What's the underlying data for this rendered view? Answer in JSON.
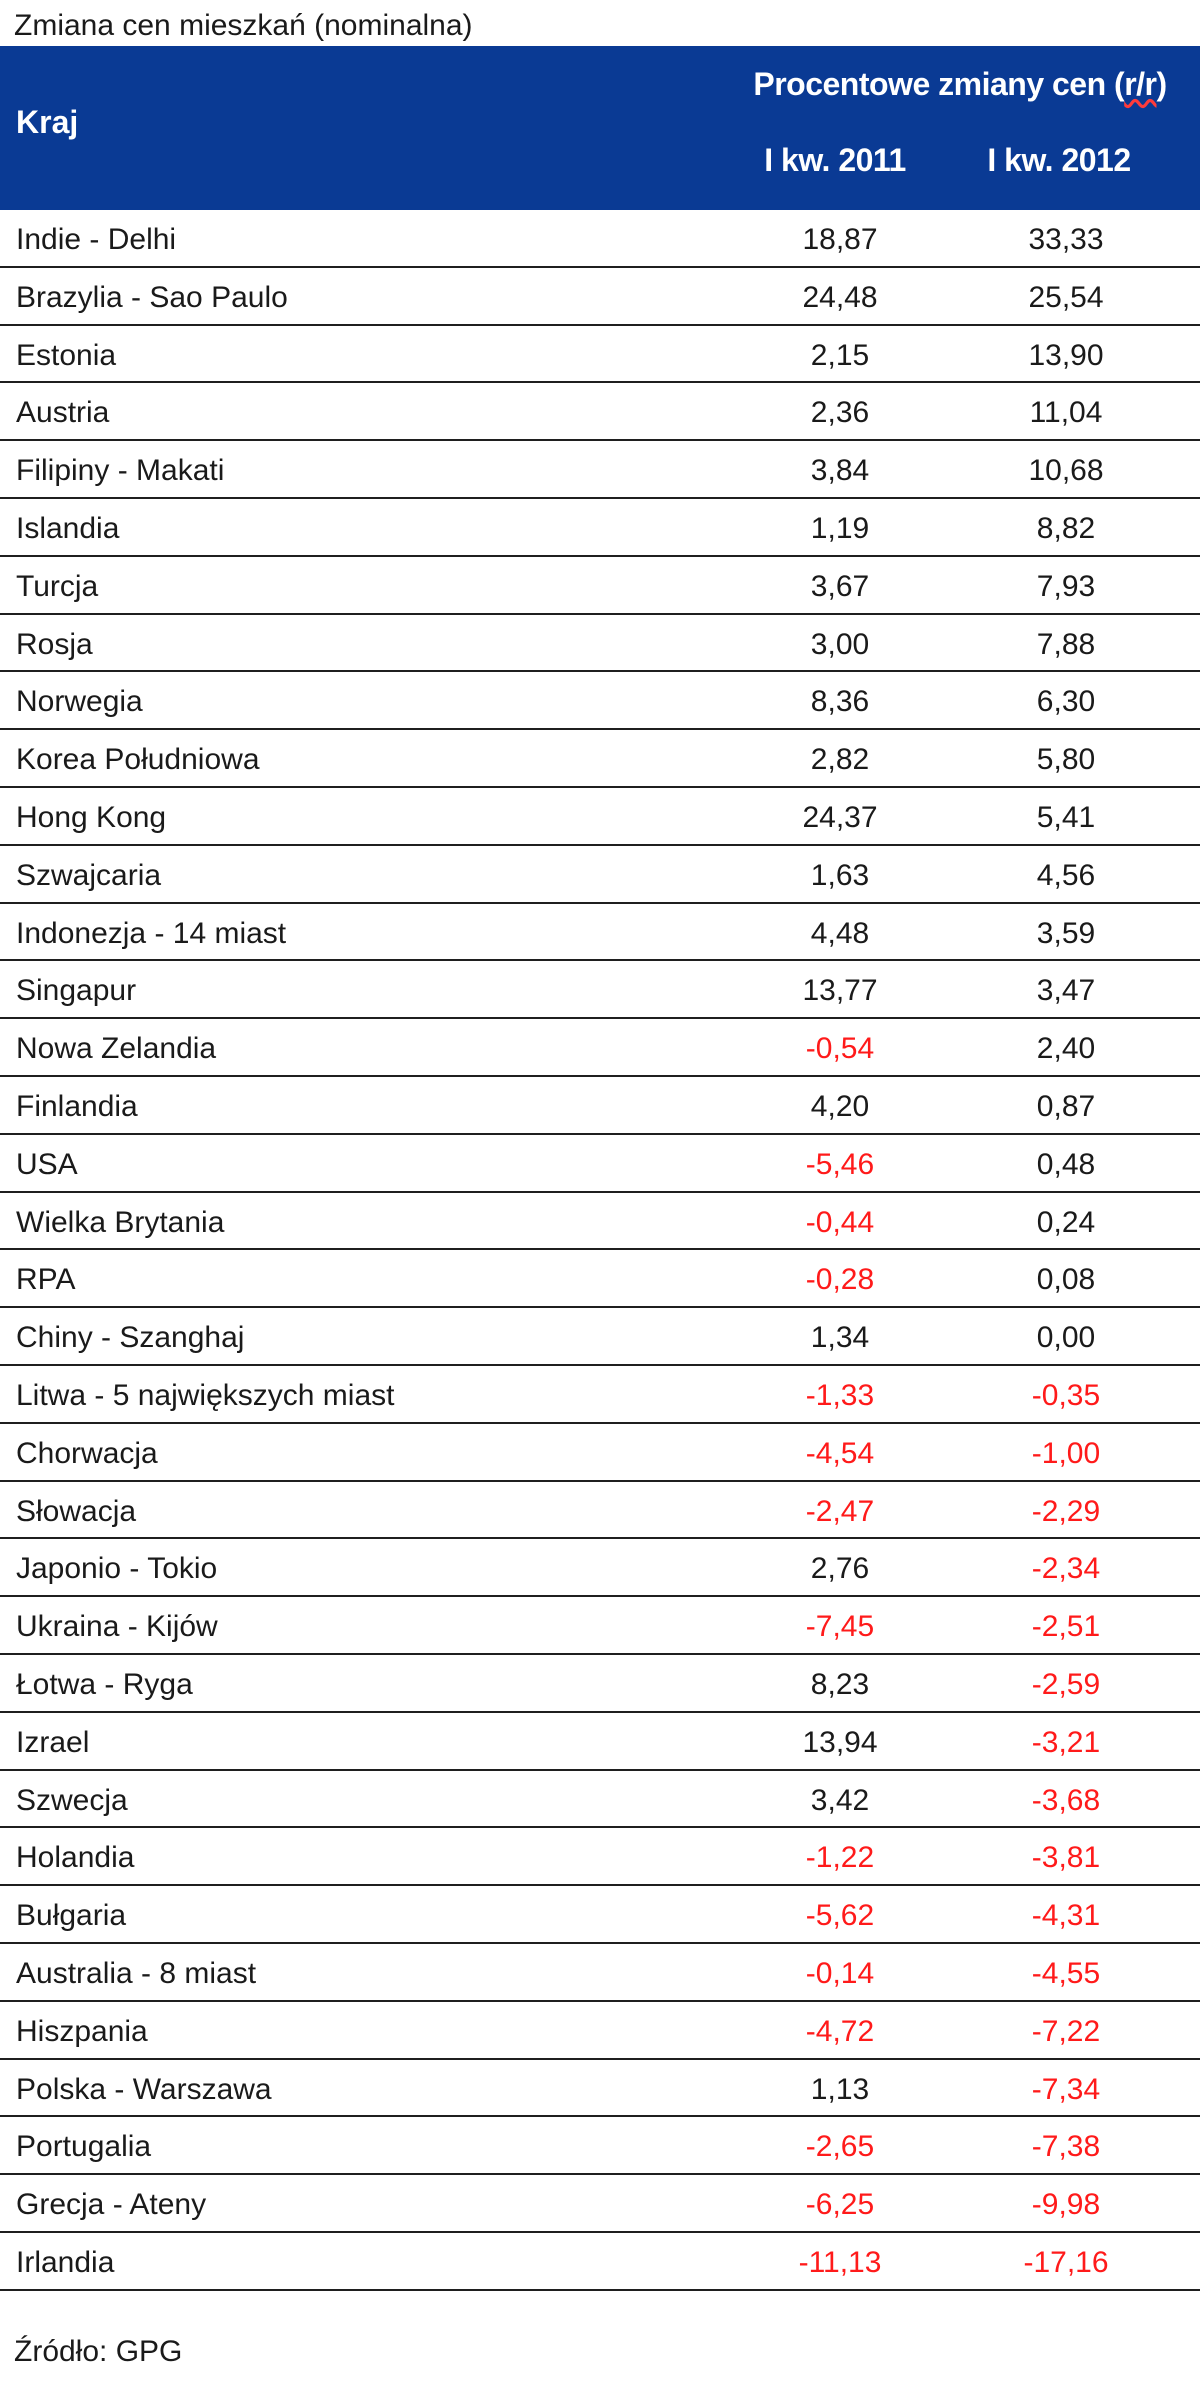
{
  "title": "Zmiana cen mieszkań (nominalna)",
  "table": {
    "header": {
      "country": "Kraj",
      "group_main": "Procentowe zmiany cen (",
      "group_rr": "r/r",
      "group_end": ")",
      "col1": "I kw. 2011",
      "col2": "I kw. 2012"
    },
    "rows": [
      {
        "country": "Indie - Delhi",
        "q1_2011": "18,87",
        "q1_2012": "33,33"
      },
      {
        "country": "Brazylia - Sao Paulo",
        "q1_2011": "24,48",
        "q1_2012": "25,54"
      },
      {
        "country": "Estonia",
        "q1_2011": "2,15",
        "q1_2012": "13,90"
      },
      {
        "country": "Austria",
        "q1_2011": "2,36",
        "q1_2012": "11,04"
      },
      {
        "country": "Filipiny - Makati",
        "q1_2011": "3,84",
        "q1_2012": "10,68"
      },
      {
        "country": "Islandia",
        "q1_2011": "1,19",
        "q1_2012": "8,82"
      },
      {
        "country": "Turcja",
        "q1_2011": "3,67",
        "q1_2012": "7,93"
      },
      {
        "country": "Rosja",
        "q1_2011": "3,00",
        "q1_2012": "7,88"
      },
      {
        "country": "Norwegia",
        "q1_2011": "8,36",
        "q1_2012": "6,30"
      },
      {
        "country": "Korea Południowa",
        "q1_2011": "2,82",
        "q1_2012": "5,80"
      },
      {
        "country": "Hong Kong",
        "q1_2011": "24,37",
        "q1_2012": "5,41"
      },
      {
        "country": "Szwajcaria",
        "q1_2011": "1,63",
        "q1_2012": "4,56"
      },
      {
        "country": "Indonezja - 14 miast",
        "q1_2011": "4,48",
        "q1_2012": "3,59"
      },
      {
        "country": "Singapur",
        "q1_2011": "13,77",
        "q1_2012": "3,47"
      },
      {
        "country": "Nowa Zelandia",
        "q1_2011": "-0,54",
        "q1_2012": "2,40"
      },
      {
        "country": "Finlandia",
        "q1_2011": "4,20",
        "q1_2012": "0,87"
      },
      {
        "country": "USA",
        "q1_2011": "-5,46",
        "q1_2012": "0,48"
      },
      {
        "country": "Wielka Brytania",
        "q1_2011": "-0,44",
        "q1_2012": "0,24"
      },
      {
        "country": "RPA",
        "q1_2011": "-0,28",
        "q1_2012": "0,08"
      },
      {
        "country": "Chiny - Szanghaj",
        "q1_2011": "1,34",
        "q1_2012": "0,00"
      },
      {
        "country": "Litwa - 5 największych miast",
        "q1_2011": "-1,33",
        "q1_2012": "-0,35"
      },
      {
        "country": "Chorwacja",
        "q1_2011": "-4,54",
        "q1_2012": "-1,00"
      },
      {
        "country": "Słowacja",
        "q1_2011": "-2,47",
        "q1_2012": "-2,29"
      },
      {
        "country": "Japonio - Tokio",
        "q1_2011": "2,76",
        "q1_2012": "-2,34"
      },
      {
        "country": "Ukraina - Kijów",
        "q1_2011": "-7,45",
        "q1_2012": "-2,51"
      },
      {
        "country": "Łotwa - Ryga",
        "q1_2011": "8,23",
        "q1_2012": "-2,59"
      },
      {
        "country": "Izrael",
        "q1_2011": "13,94",
        "q1_2012": "-3,21"
      },
      {
        "country": "Szwecja",
        "q1_2011": "3,42",
        "q1_2012": "-3,68"
      },
      {
        "country": "Holandia",
        "q1_2011": "-1,22",
        "q1_2012": "-3,81"
      },
      {
        "country": "Bułgaria",
        "q1_2011": "-5,62",
        "q1_2012": "-4,31"
      },
      {
        "country": "Australia - 8 miast",
        "q1_2011": "-0,14",
        "q1_2012": "-4,55"
      },
      {
        "country": "Hiszpania",
        "q1_2011": "-4,72",
        "q1_2012": "-7,22"
      },
      {
        "country": "Polska - Warszawa",
        "q1_2011": "1,13",
        "q1_2012": "-7,34"
      },
      {
        "country": "Portugalia",
        "q1_2011": "-2,65",
        "q1_2012": "-7,38"
      },
      {
        "country": "Grecja - Ateny",
        "q1_2011": "-6,25",
        "q1_2012": "-9,98"
      },
      {
        "country": "Irlandia",
        "q1_2011": "-11,13",
        "q1_2012": "-17,16"
      }
    ]
  },
  "source": "Źródło: GPG",
  "colors": {
    "header_bg": "#0a3a94",
    "header_text": "#ffffff",
    "negative": "#ff1a1a",
    "text": "#1a1a1a"
  }
}
